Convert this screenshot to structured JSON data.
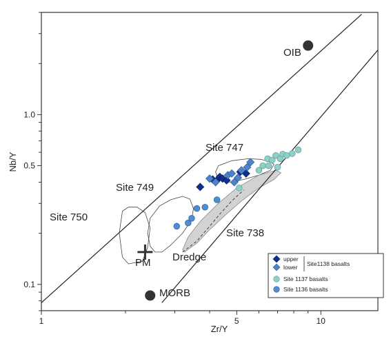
{
  "chart_data": {
    "type": "scatter",
    "title": "",
    "xlabel": "Zr/Y",
    "ylabel": "Nb/Y",
    "x_scale": "log",
    "y_scale": "log",
    "xlim": [
      1,
      16
    ],
    "ylim": [
      0.07,
      4
    ],
    "x_ticks": [
      {
        "value": 1,
        "label": "1"
      },
      {
        "value": 5,
        "label": "5"
      },
      {
        "value": 10,
        "label": "10"
      }
    ],
    "y_ticks": [
      {
        "value": 0.1,
        "label": "0.1"
      },
      {
        "value": 0.5,
        "label": "0.5"
      },
      {
        "value": 1.0,
        "label": "1.0"
      }
    ],
    "grid": false,
    "legend": {
      "placement": "bottom-right",
      "group_label": "Site1138 basalts",
      "entries": [
        {
          "label": "upper",
          "marker": "diamond",
          "color": "#0e2f8c"
        },
        {
          "label": "lower",
          "marker": "diamond",
          "color": "#4f83c9"
        },
        {
          "label": "Site 1137 basalts",
          "marker": "circle",
          "color": "#8ecfc6"
        },
        {
          "label": "Site 1136 basalts",
          "marker": "circle",
          "color": "#4f8ed1"
        }
      ]
    },
    "reference_points": [
      {
        "label": "OIB",
        "x": 9.0,
        "y": 2.55
      },
      {
        "label": "MORB",
        "x": 2.45,
        "y": 0.086
      }
    ],
    "primitive_mantle": {
      "label": "PM",
      "x": 2.35,
      "y": 0.155
    },
    "boundary_lines": [
      {
        "x": [
          1.0,
          14.0
        ],
        "y": [
          0.078,
          3.9
        ]
      },
      {
        "x": [
          2.7,
          16.0
        ],
        "y": [
          0.078,
          2.4
        ]
      }
    ],
    "fields": [
      {
        "label": "Site 750",
        "x": [
          1.95,
          2.05,
          2.2,
          2.35,
          2.45,
          2.4,
          2.3,
          2.05,
          1.95,
          1.9,
          1.95
        ],
        "y": [
          0.27,
          0.285,
          0.285,
          0.265,
          0.215,
          0.165,
          0.137,
          0.132,
          0.145,
          0.2,
          0.27
        ]
      },
      {
        "label": "Site 749",
        "x": [
          2.45,
          2.65,
          2.9,
          3.2,
          3.4,
          3.5,
          3.45,
          3.2,
          2.9,
          2.7,
          2.55,
          2.45,
          2.4,
          2.45
        ],
        "y": [
          0.245,
          0.29,
          0.315,
          0.33,
          0.318,
          0.28,
          0.24,
          0.2,
          0.17,
          0.155,
          0.155,
          0.168,
          0.2,
          0.245
        ]
      },
      {
        "label": "Site 747",
        "x": [
          4.3,
          4.8,
          5.5,
          6.1,
          6.5,
          6.8,
          6.6,
          6.0,
          5.3,
          4.7,
          4.3,
          4.2,
          4.3
        ],
        "y": [
          0.5,
          0.535,
          0.55,
          0.545,
          0.53,
          0.51,
          0.47,
          0.44,
          0.415,
          0.4,
          0.415,
          0.46,
          0.5
        ]
      },
      {
        "label": "Site 738",
        "x": [
          3.2,
          3.35,
          3.7,
          4.3,
          5.0,
          6.0,
          6.9,
          7.2,
          6.8,
          6.0,
          5.2,
          4.6,
          4.0,
          3.6,
          3.25,
          3.2
        ],
        "y": [
          0.16,
          0.19,
          0.235,
          0.3,
          0.37,
          0.44,
          0.47,
          0.455,
          0.415,
          0.37,
          0.31,
          0.26,
          0.21,
          0.175,
          0.155,
          0.16
        ],
        "filled": true
      },
      {
        "label": "Dredge",
        "x": [
          3.2,
          3.6,
          4.0,
          4.4,
          4.8,
          5.3
        ],
        "y": [
          0.155,
          0.18,
          0.22,
          0.265,
          0.31,
          0.36
        ],
        "dashed": true
      }
    ],
    "series": [
      {
        "name": "upper",
        "marker": "diamond",
        "color": "#0e2f8c",
        "x": [
          3.7,
          4.1,
          4.25,
          4.35,
          4.45,
          4.6,
          5.15,
          5.4
        ],
        "y": [
          0.375,
          0.415,
          0.41,
          0.43,
          0.42,
          0.41,
          0.46,
          0.45
        ]
      },
      {
        "name": "lower",
        "marker": "diamond",
        "color": "#4f83c9",
        "x": [
          4.0,
          4.2,
          4.65,
          4.8,
          4.9,
          5.05,
          5.2,
          5.45,
          5.6
        ],
        "y": [
          0.42,
          0.4,
          0.44,
          0.45,
          0.4,
          0.425,
          0.47,
          0.49,
          0.525
        ]
      },
      {
        "name": "Site 1137 basalts",
        "marker": "circle",
        "color": "#8ecfc6",
        "x": [
          5.1,
          6.0,
          6.2,
          6.45,
          6.7,
          6.9,
          7.15,
          7.3,
          7.55,
          7.9,
          8.3,
          6.5,
          7.0
        ],
        "y": [
          0.37,
          0.47,
          0.5,
          0.55,
          0.54,
          0.575,
          0.55,
          0.585,
          0.575,
          0.59,
          0.62,
          0.5,
          0.49
        ]
      },
      {
        "name": "Site 1136 basalts",
        "marker": "circle",
        "color": "#4f8ed1",
        "x": [
          3.05,
          3.35,
          3.45,
          3.6,
          3.85,
          4.25
        ],
        "y": [
          0.22,
          0.23,
          0.245,
          0.28,
          0.285,
          0.315
        ]
      }
    ]
  }
}
